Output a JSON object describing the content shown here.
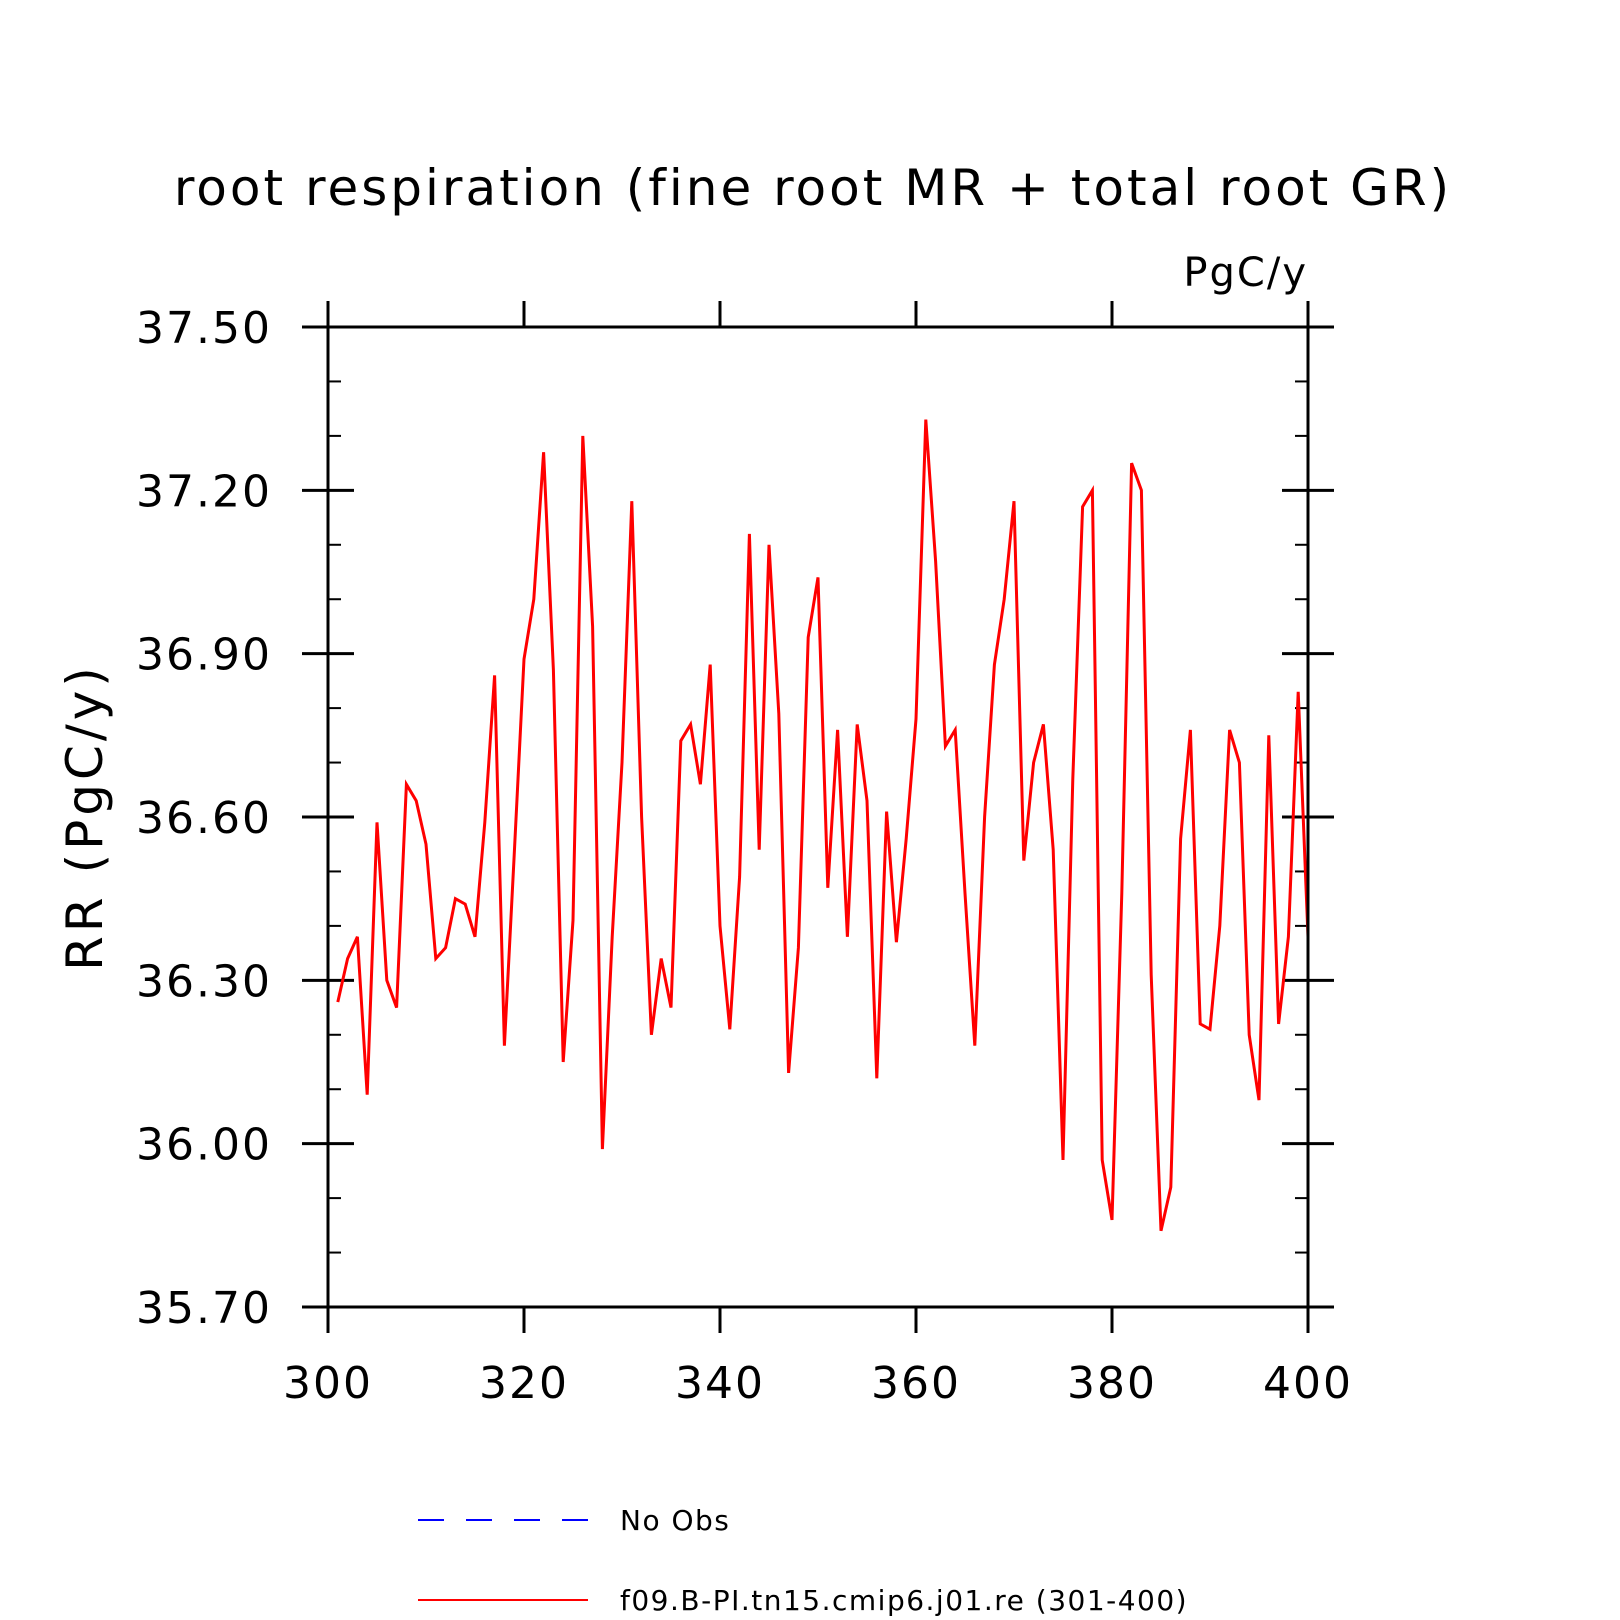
{
  "chart_data": {
    "type": "line",
    "title": "root respiration (fine root MR + total root GR)",
    "units": "PgC/y",
    "ylabel": "RR  (PgC/y)",
    "xlabel": "",
    "xlim": [
      300,
      400
    ],
    "ylim": [
      35.7,
      37.5
    ],
    "xticks": [
      300,
      320,
      340,
      360,
      380,
      400
    ],
    "xtick_labels": [
      "300",
      "320",
      "340",
      "360",
      "380",
      "400"
    ],
    "yticks": [
      35.7,
      36.0,
      36.3,
      36.6,
      36.9,
      37.2,
      37.5
    ],
    "ytick_labels": [
      "35.70",
      "36.00",
      "36.30",
      "36.60",
      "36.90",
      "37.20",
      "37.50"
    ],
    "grid": false,
    "legend_position": "bottom",
    "legend": [
      {
        "label": "No Obs",
        "color": "#0000ff",
        "dash": "dashed"
      },
      {
        "label": "f09.B-PI.tn15.cmip6.j01.re (301-400)",
        "color": "#ff0000",
        "dash": "solid"
      }
    ],
    "series": [
      {
        "name": "f09.B-PI.tn15.cmip6.j01.re (301-400)",
        "color": "#ff0000",
        "x": [
          301,
          302,
          303,
          304,
          305,
          306,
          307,
          308,
          309,
          310,
          311,
          312,
          313,
          314,
          315,
          316,
          317,
          318,
          319,
          320,
          321,
          322,
          323,
          324,
          325,
          326,
          327,
          328,
          329,
          330,
          331,
          332,
          333,
          334,
          335,
          336,
          337,
          338,
          339,
          340,
          341,
          342,
          343,
          344,
          345,
          346,
          347,
          348,
          349,
          350,
          351,
          352,
          353,
          354,
          355,
          356,
          357,
          358,
          359,
          360,
          361,
          362,
          363,
          364,
          365,
          366,
          367,
          368,
          369,
          370,
          371,
          372,
          373,
          374,
          375,
          376,
          377,
          378,
          379,
          380,
          381,
          382,
          383,
          384,
          385,
          386,
          387,
          388,
          389,
          390,
          391,
          392,
          393,
          394,
          395,
          396,
          397,
          398,
          399,
          400
        ],
        "values": [
          36.26,
          36.34,
          36.38,
          36.09,
          36.59,
          36.3,
          36.25,
          36.66,
          36.63,
          36.55,
          36.34,
          36.36,
          36.45,
          36.44,
          36.38,
          36.59,
          36.86,
          36.18,
          36.53,
          36.89,
          37.0,
          37.27,
          36.87,
          36.15,
          36.41,
          37.3,
          36.95,
          35.99,
          36.38,
          36.7,
          37.18,
          36.6,
          36.2,
          36.34,
          36.25,
          36.74,
          36.77,
          36.66,
          36.88,
          36.4,
          36.21,
          36.49,
          37.12,
          36.54,
          37.1,
          36.79,
          36.13,
          36.36,
          36.93,
          37.04,
          36.47,
          36.76,
          36.38,
          36.77,
          36.63,
          36.12,
          36.61,
          36.37,
          36.56,
          36.78,
          37.33,
          37.07,
          36.73,
          36.76,
          36.46,
          36.18,
          36.6,
          36.88,
          37.0,
          37.18,
          36.52,
          36.7,
          36.77,
          36.54,
          35.97,
          36.67,
          37.17,
          37.2,
          35.97,
          35.86,
          36.46,
          37.25,
          37.2,
          36.31,
          35.84,
          35.92,
          36.56,
          36.76,
          36.22,
          36.21,
          36.4,
          36.76,
          36.7,
          36.2,
          36.08,
          36.75,
          36.22,
          36.38,
          36.83,
          36.38
        ]
      }
    ]
  }
}
